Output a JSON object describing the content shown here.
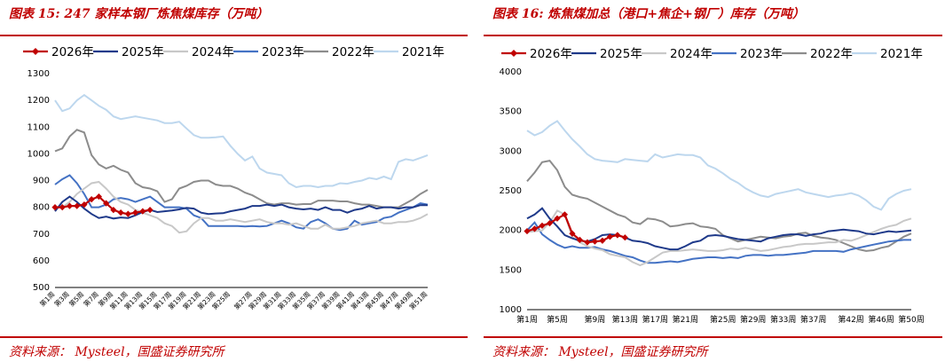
{
  "left": {
    "title": "图表 15:  247 家样本钢厂炼焦煤库存（万吨）",
    "source": "资料来源：  Mysteel，国盛证券研究所"
  },
  "right": {
    "title": "图表 16:  炼焦煤加总（港口+焦企+钢厂）库存（万吨）",
    "source": "资料来源：  Mysteel，国盛证券研究所"
  },
  "chart_data": [
    {
      "type": "line",
      "title": "247 家样本钢厂炼焦煤库存（万吨）",
      "ylim": [
        500,
        1300
      ],
      "yticks": [
        500,
        600,
        700,
        800,
        900,
        1000,
        1100,
        1200,
        1300
      ],
      "xticklabels": [
        "第1周",
        "第3周",
        "第5周",
        "第7周",
        "第9周",
        "第11周",
        "第13周",
        "第15周",
        "第17周",
        "第19周",
        "第21周",
        "第23周",
        "第25周",
        "第27周",
        "第29周",
        "第31周",
        "第33周",
        "第35周",
        "第37周",
        "第39周",
        "第41周",
        "第43周",
        "第45周",
        "第47周",
        "第49周",
        "第51周"
      ],
      "legend": "top",
      "series": [
        {
          "name": "2026年",
          "color": "#c00000",
          "marker": "diamond",
          "values": [
            800,
            800,
            805,
            805,
            810,
            830,
            840,
            815,
            790,
            780,
            775,
            780,
            785,
            790
          ]
        },
        {
          "name": "2025年",
          "color": "#1f3a8a",
          "values": [
            785,
            820,
            840,
            820,
            795,
            775,
            760,
            765,
            758,
            762,
            760,
            770,
            782,
            790,
            782,
            785,
            788,
            792,
            798,
            795,
            780,
            775,
            777,
            778,
            785,
            790,
            795,
            805,
            805,
            810,
            805,
            810,
            800,
            795,
            792,
            795,
            790,
            800,
            790,
            790,
            780,
            790,
            795,
            805,
            795,
            800,
            800,
            795,
            800,
            800,
            808,
            808
          ]
        },
        {
          "name": "2024年",
          "color": "#c8c8c8",
          "values": [
            800,
            800,
            820,
            850,
            870,
            890,
            895,
            870,
            840,
            820,
            810,
            790,
            780,
            770,
            760,
            740,
            730,
            705,
            710,
            740,
            760,
            760,
            750,
            750,
            755,
            750,
            745,
            750,
            755,
            745,
            740,
            740,
            735,
            740,
            730,
            720,
            720,
            735,
            720,
            720,
            725,
            730,
            740,
            745,
            750,
            740,
            740,
            745,
            745,
            750,
            760,
            775
          ]
        },
        {
          "name": "2023年",
          "color": "#4472c4",
          "values": [
            885,
            905,
            920,
            890,
            850,
            800,
            800,
            810,
            830,
            835,
            830,
            820,
            830,
            840,
            820,
            800,
            800,
            800,
            795,
            770,
            760,
            730,
            730,
            730,
            730,
            730,
            728,
            730,
            728,
            730,
            740,
            750,
            740,
            725,
            720,
            745,
            755,
            740,
            720,
            715,
            720,
            750,
            735,
            740,
            745,
            760,
            765,
            780,
            790,
            800,
            815,
            810
          ]
        },
        {
          "name": "2022年",
          "color": "#8c8c8c",
          "values": [
            1010,
            1020,
            1065,
            1090,
            1080,
            995,
            960,
            945,
            955,
            940,
            930,
            890,
            875,
            870,
            860,
            820,
            830,
            870,
            880,
            895,
            900,
            900,
            885,
            880,
            880,
            870,
            855,
            845,
            830,
            815,
            810,
            815,
            815,
            810,
            812,
            812,
            825,
            825,
            825,
            822,
            822,
            815,
            810,
            810,
            805,
            800,
            800,
            800,
            815,
            830,
            850,
            865
          ]
        },
        {
          "name": "2021年",
          "color": "#bdd7ee",
          "values": [
            1200,
            1160,
            1170,
            1200,
            1220,
            1200,
            1180,
            1165,
            1140,
            1130,
            1135,
            1140,
            1135,
            1130,
            1125,
            1115,
            1115,
            1120,
            1095,
            1070,
            1060,
            1060,
            1062,
            1065,
            1030,
            1000,
            975,
            990,
            945,
            930,
            925,
            920,
            890,
            875,
            880,
            880,
            875,
            880,
            880,
            890,
            888,
            895,
            900,
            910,
            905,
            915,
            905,
            970,
            980,
            975,
            985,
            995
          ]
        }
      ]
    },
    {
      "type": "line",
      "title": "炼焦煤加总（港口+焦企+钢厂）库存（万吨）",
      "ylim": [
        1000,
        4000
      ],
      "yticks": [
        1000,
        1500,
        2000,
        2500,
        3000,
        3500,
        4000
      ],
      "xticklabels": [
        "第1周",
        "第5周",
        "第9周",
        "第13周",
        "第17周",
        "第21周",
        "第25周",
        "第29周",
        "第33周",
        "第37周",
        "第42周",
        "第46周",
        "第50周"
      ],
      "legend": "top",
      "series": [
        {
          "name": "2026年",
          "color": "#c00000",
          "marker": "diamond",
          "values": [
            1990,
            2020,
            2060,
            2090,
            2150,
            2200,
            1960,
            1880,
            1850,
            1860,
            1870,
            1920,
            1940,
            1910
          ]
        },
        {
          "name": "2025年",
          "color": "#1f3a8a",
          "values": [
            2150,
            2200,
            2280,
            2150,
            2050,
            1940,
            1900,
            1870,
            1860,
            1890,
            1940,
            1950,
            1940,
            1910,
            1870,
            1860,
            1840,
            1800,
            1780,
            1760,
            1760,
            1800,
            1850,
            1870,
            1930,
            1940,
            1930,
            1910,
            1890,
            1880,
            1870,
            1860,
            1900,
            1920,
            1940,
            1950,
            1950,
            1930,
            1950,
            1960,
            1990,
            2000,
            2010,
            2000,
            1990,
            1960,
            1950,
            1970,
            1990,
            1980,
            1990,
            2000
          ]
        },
        {
          "name": "2024年",
          "color": "#c8c8c8",
          "values": [
            1980,
            1990,
            2000,
            2100,
            2250,
            2200,
            1920,
            1850,
            1800,
            1770,
            1750,
            1700,
            1680,
            1660,
            1600,
            1560,
            1600,
            1660,
            1720,
            1740,
            1740,
            1750,
            1760,
            1750,
            1740,
            1740,
            1750,
            1770,
            1760,
            1780,
            1760,
            1740,
            1750,
            1770,
            1790,
            1800,
            1820,
            1830,
            1830,
            1840,
            1850,
            1850,
            1880,
            1870,
            1900,
            1940,
            1980,
            2020,
            2050,
            2070,
            2120,
            2150
          ]
        },
        {
          "name": "2023年",
          "color": "#4472c4",
          "values": [
            2000,
            2100,
            1950,
            1880,
            1820,
            1780,
            1800,
            1780,
            1780,
            1790,
            1760,
            1740,
            1710,
            1680,
            1660,
            1620,
            1590,
            1590,
            1600,
            1610,
            1600,
            1620,
            1640,
            1650,
            1660,
            1660,
            1650,
            1660,
            1650,
            1680,
            1690,
            1690,
            1680,
            1690,
            1690,
            1700,
            1710,
            1720,
            1740,
            1740,
            1740,
            1740,
            1730,
            1760,
            1780,
            1800,
            1820,
            1840,
            1860,
            1870,
            1880,
            1880
          ]
        },
        {
          "name": "2022年",
          "color": "#8c8c8c",
          "values": [
            2620,
            2730,
            2860,
            2880,
            2760,
            2550,
            2450,
            2420,
            2400,
            2350,
            2300,
            2250,
            2200,
            2170,
            2100,
            2080,
            2150,
            2140,
            2110,
            2050,
            2060,
            2080,
            2090,
            2050,
            2040,
            2020,
            1940,
            1900,
            1860,
            1880,
            1900,
            1920,
            1910,
            1900,
            1920,
            1930,
            1960,
            1970,
            1930,
            1910,
            1900,
            1880,
            1840,
            1800,
            1760,
            1740,
            1750,
            1780,
            1800,
            1860,
            1920,
            1960
          ]
        },
        {
          "name": "2021年",
          "color": "#bdd7ee",
          "values": [
            3260,
            3200,
            3240,
            3320,
            3380,
            3260,
            3150,
            3060,
            2960,
            2900,
            2880,
            2870,
            2860,
            2900,
            2890,
            2880,
            2870,
            2960,
            2920,
            2940,
            2960,
            2950,
            2950,
            2920,
            2820,
            2780,
            2720,
            2650,
            2600,
            2530,
            2480,
            2440,
            2420,
            2460,
            2480,
            2500,
            2520,
            2480,
            2460,
            2440,
            2420,
            2440,
            2450,
            2470,
            2440,
            2380,
            2300,
            2260,
            2400,
            2460,
            2500,
            2520
          ]
        }
      ]
    }
  ]
}
